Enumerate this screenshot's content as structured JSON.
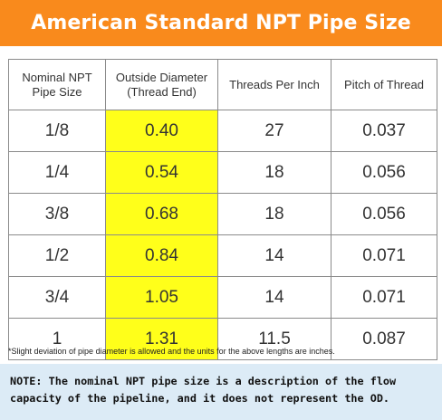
{
  "title": "American Standard NPT Pipe Size",
  "table": {
    "headers": [
      "Nominal NPT\nPipe Size",
      "Outside Diameter\n(Thread End)",
      "Threads Per Inch",
      "Pitch of Thread"
    ],
    "rows": [
      [
        "1/8",
        "0.40",
        "27",
        "0.037"
      ],
      [
        "1/4",
        "0.54",
        "18",
        "0.056"
      ],
      [
        "3/8",
        "0.68",
        "18",
        "0.056"
      ],
      [
        "1/2",
        "0.84",
        "14",
        "0.071"
      ],
      [
        "3/4",
        "1.05",
        "14",
        "0.071"
      ],
      [
        "1",
        "1.31",
        "11.5",
        "0.087"
      ]
    ]
  },
  "footnote": "*Slight deviation of pipe diameter is allowed and the units for the above lengths are inches.",
  "note": "NOTE: The nominal NPT pipe size is a description of the flow capacity of the pipeline, and it does not represent the OD.",
  "colors": {
    "banner": "#f98a1c",
    "highlight": "#ffff1a",
    "note_background": "#dcebf6"
  }
}
